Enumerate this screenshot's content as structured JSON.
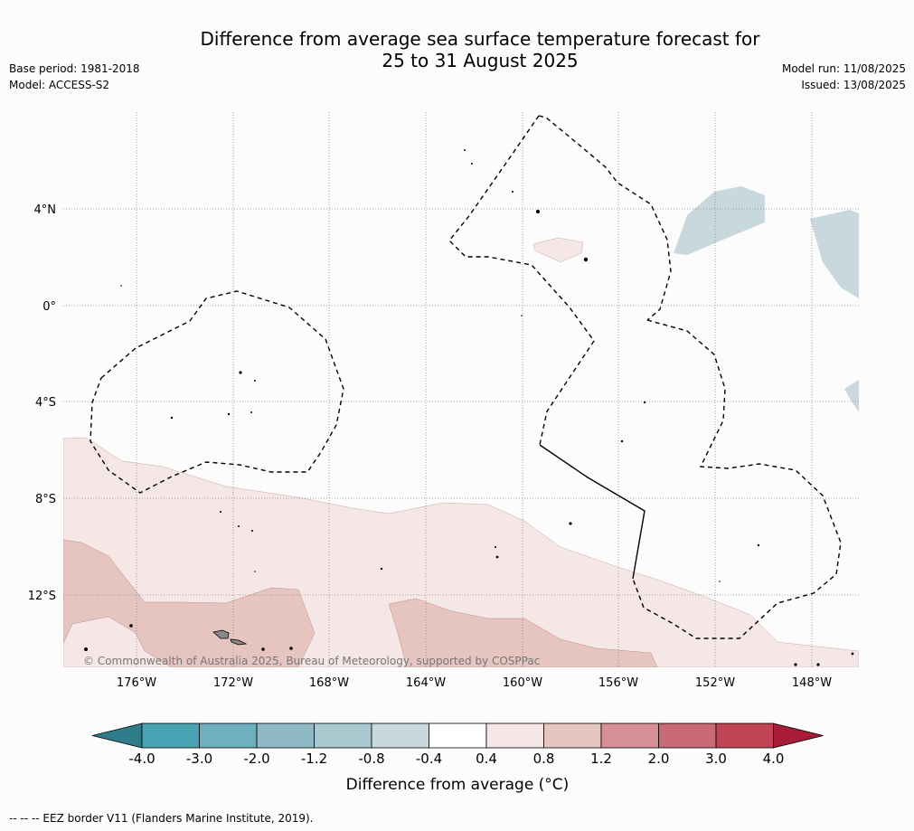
{
  "title_line1": "Difference from average sea surface temperature forecast for",
  "title_line2": "25 to 31 August 2025",
  "meta": {
    "base_period": "Base period: 1981-2018",
    "model": "Model: ACCESS-S2",
    "model_run": "Model run: 11/08/2025",
    "issued": "Issued: 13/08/2025"
  },
  "map": {
    "lat_labels": [
      "4°N",
      "0°",
      "4°S",
      "8°S",
      "12°S"
    ],
    "lon_labels": [
      "176°W",
      "172°W",
      "168°W",
      "164°W",
      "160°W",
      "156°W",
      "152°W",
      "148°W"
    ],
    "copyright": "© Commonwealth of Australia 2025, Bureau of Meteorology, supported by COSPPac",
    "colors": {
      "land": "#000000",
      "grid": "#888888",
      "eez_border": "#000000"
    }
  },
  "colorbar": {
    "tick_labels": [
      "-4.0",
      "-3.0",
      "-2.0",
      "-1.2",
      "-0.8",
      "-0.4",
      "0.4",
      "0.8",
      "1.2",
      "2.0",
      "3.0",
      "4.0"
    ],
    "colors": [
      "#2f7c8a",
      "#4aa3b3",
      "#6fb0bf",
      "#8fbac5",
      "#a9c8cf",
      "#c9d8dd",
      "#ffffff",
      "#f4e7e6",
      "#e6c4c0",
      "#d79096",
      "#c96b74",
      "#c04454",
      "#a81c38"
    ],
    "label": "Difference from average (°C)"
  },
  "footer": "--  --  -- EEZ border V11 (Flanders Marine Institute, 2019)."
}
